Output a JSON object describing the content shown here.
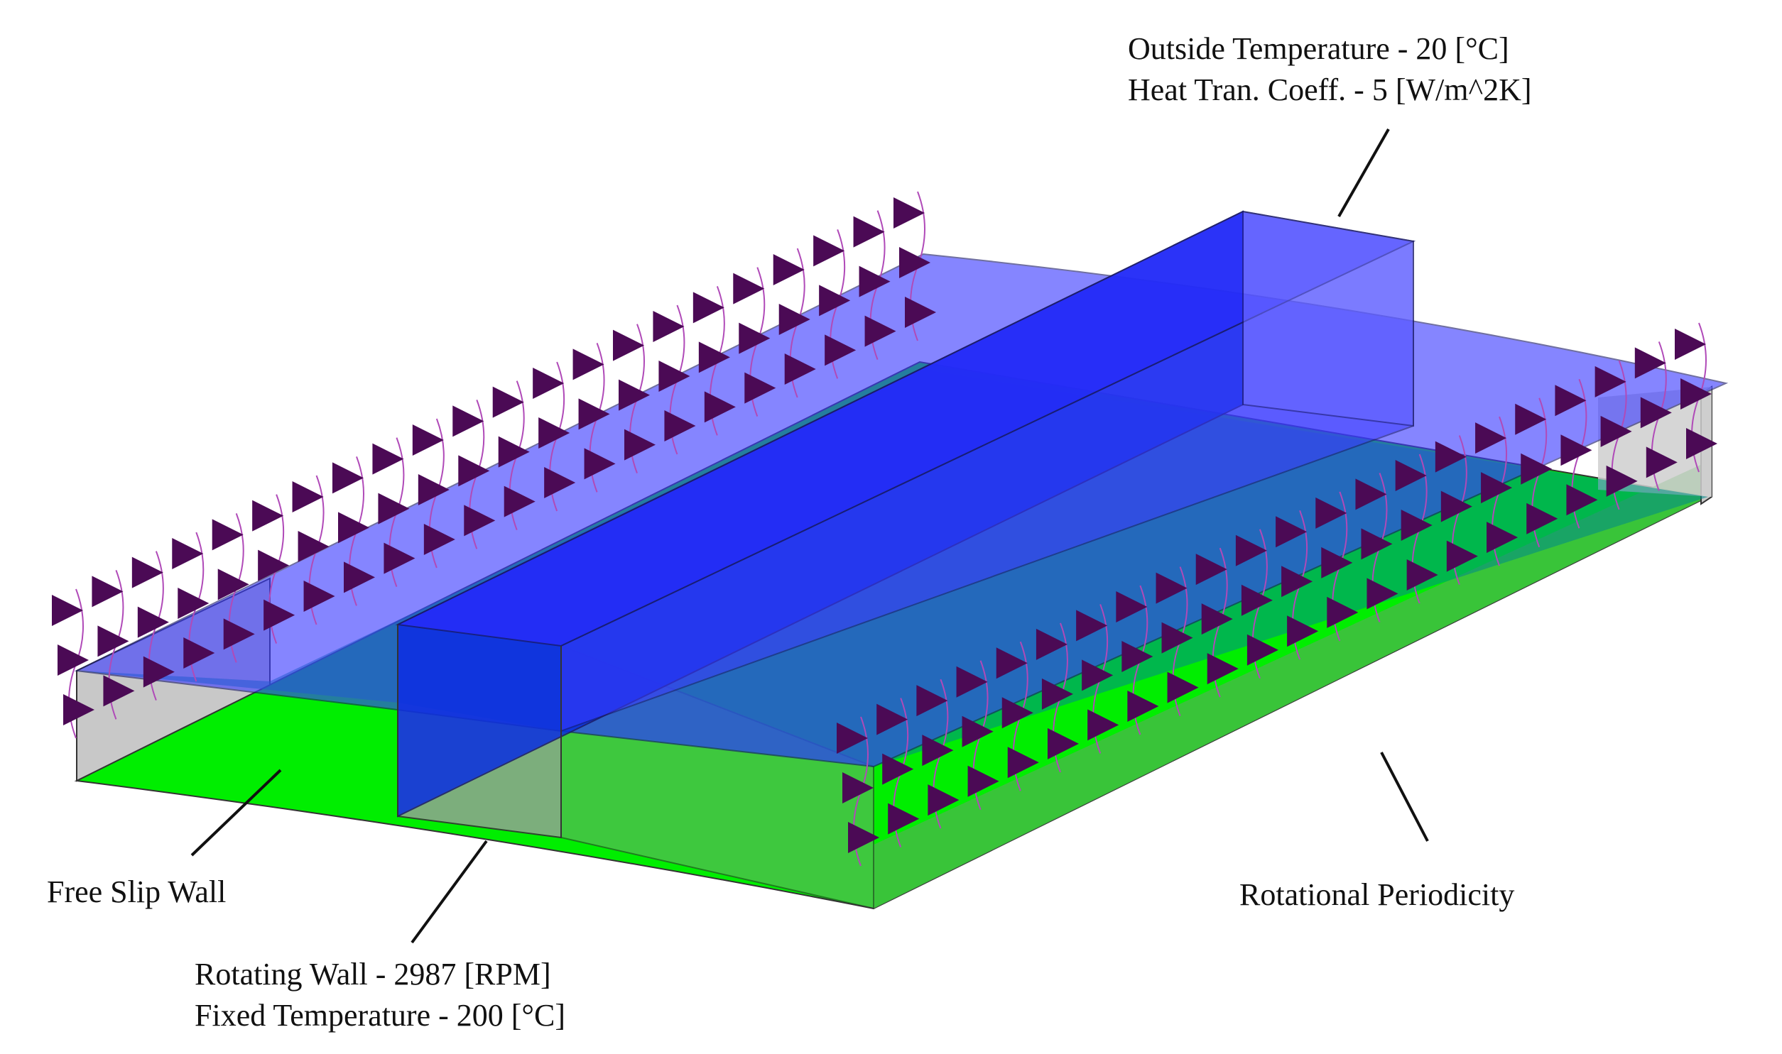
{
  "annotations": {
    "outside": {
      "line1": "Outside Temperature - 20 [°C]",
      "line2": "Heat Tran. Coeff. - 5 [W/m^2K]"
    },
    "free_slip": "Free Slip Wall",
    "rotating": {
      "line1": "Rotating Wall - 2987 [RPM]",
      "line2": "Fixed Temperature - 200 [°C]"
    },
    "periodicity": "Rotational Periodicity"
  },
  "colors": {
    "outside_wall": "#3b3bff",
    "rotating_wall": "#00ee00",
    "free_slip_wall": "#c8c8c8",
    "periodic_marker": "#4b0a55",
    "periodic_curve": "#b04ab8"
  }
}
